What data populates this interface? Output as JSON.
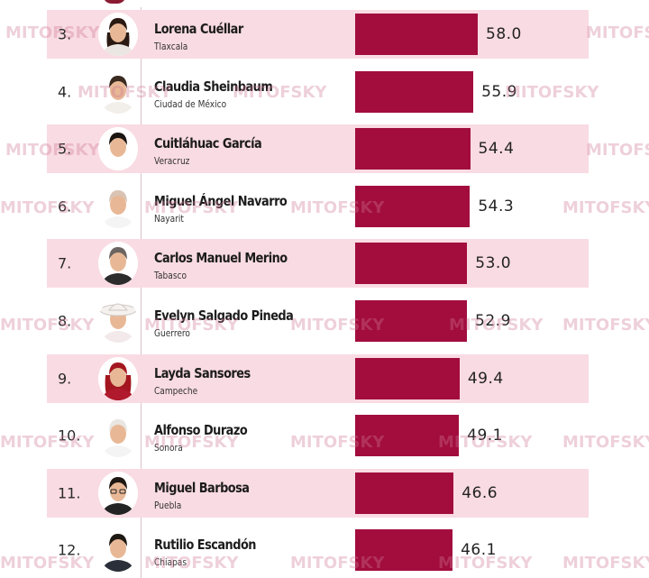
{
  "chart_data": {
    "type": "bar",
    "orientation": "horizontal",
    "categories": [
      "Lorena Cuéllar",
      "Claudia Sheinbaum",
      "Cuitláhuac García",
      "Miguel Ángel Navarro",
      "Carlos Manuel Merino",
      "Evelyn Salgado Pineda",
      "Layda Sansores",
      "Alfonso Durazo",
      "Miguel Barbosa",
      "Rutilio Escandón"
    ],
    "values": [
      58.0,
      55.9,
      54.4,
      54.3,
      53.0,
      52.9,
      49.4,
      49.1,
      46.6,
      46.1
    ],
    "value_labels": [
      "58.0",
      "55.9",
      "54.4",
      "54.3",
      "53.0",
      "52.9",
      "49.4",
      "49.1",
      "46.6",
      "46.1"
    ],
    "bar_color": "#a20d3e",
    "value_min": 0,
    "rows": [
      {
        "rank": "3.",
        "name": "Lorena Cuéllar",
        "state": "Tlaxcala",
        "avatar": "woman-dark-hair"
      },
      {
        "rank": "4.",
        "name": "Claudia Sheinbaum",
        "state": "Ciudad de México",
        "avatar": "woman-tied-hair"
      },
      {
        "rank": "5.",
        "name": "Cuitláhuac García",
        "state": "Veracruz",
        "avatar": "man-dark-hair"
      },
      {
        "rank": "6.",
        "name": "Miguel Ángel Navarro",
        "state": "Nayarit",
        "avatar": "man-bald"
      },
      {
        "rank": "7.",
        "name": "Carlos Manuel Merino",
        "state": "Tabasco",
        "avatar": "man-gray-hair"
      },
      {
        "rank": "8.",
        "name": "Evelyn Salgado Pineda",
        "state": "Guerrero",
        "avatar": "woman-white-hat"
      },
      {
        "rank": "9.",
        "name": "Layda Sansores",
        "state": "Campeche",
        "avatar": "woman-red-hair"
      },
      {
        "rank": "10.",
        "name": "Alfonso Durazo",
        "state": "Sonora",
        "avatar": "man-white-hair"
      },
      {
        "rank": "11.",
        "name": "Miguel Barbosa",
        "state": "Puebla",
        "avatar": "man-glasses"
      },
      {
        "rank": "12.",
        "name": "Rutilio Escandón",
        "state": "Chiapas",
        "avatar": "man-suit"
      }
    ],
    "row_shading": "alternating-pink",
    "shade_color": "#f9dbe3"
  },
  "watermark": {
    "text": "MITOFSKY",
    "color": "#cd7896"
  }
}
